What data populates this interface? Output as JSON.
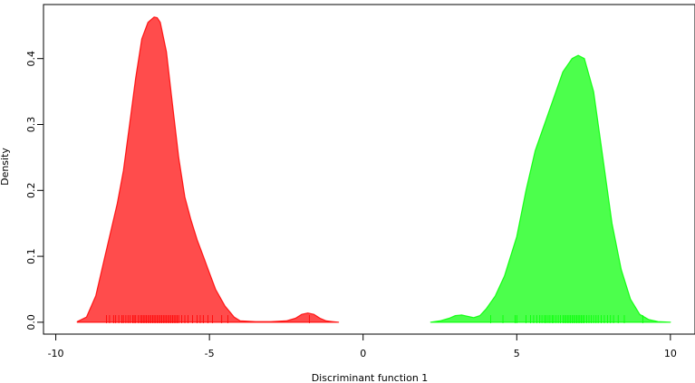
{
  "chart_data": {
    "type": "area",
    "title": "",
    "xlabel": "Discriminant function 1",
    "ylabel": "Density",
    "xlim": [
      -10.4,
      10.8
    ],
    "ylim": [
      -0.018,
      0.482
    ],
    "x_ticks": [
      -10,
      -5,
      0,
      5,
      10
    ],
    "x_tick_labels": [
      "-10",
      "-5",
      "0",
      "5",
      "10"
    ],
    "y_ticks": [
      0.0,
      0.1,
      0.2,
      0.3,
      0.4
    ],
    "y_tick_labels": [
      "0.0",
      "0.1",
      "0.2",
      "0.3",
      "0.4"
    ],
    "grid": false,
    "legend": "none",
    "series": [
      {
        "color": "#ff0000",
        "x": [
          -9.3,
          -9.0,
          -8.7,
          -8.4,
          -8.2,
          -8.0,
          -7.8,
          -7.6,
          -7.4,
          -7.2,
          -7.0,
          -6.8,
          -6.7,
          -6.6,
          -6.4,
          -6.2,
          -6.0,
          -5.8,
          -5.6,
          -5.4,
          -5.2,
          -5.0,
          -4.8,
          -4.5,
          -4.2,
          -4.0,
          -3.5,
          -3.0,
          -2.5,
          -2.2,
          -2.0,
          -1.8,
          -1.6,
          -1.4,
          -1.2,
          -1.0,
          -0.8
        ],
        "y": [
          0.001,
          0.008,
          0.04,
          0.1,
          0.14,
          0.18,
          0.23,
          0.3,
          0.37,
          0.43,
          0.455,
          0.463,
          0.462,
          0.455,
          0.41,
          0.33,
          0.25,
          0.19,
          0.155,
          0.125,
          0.1,
          0.075,
          0.05,
          0.025,
          0.008,
          0.002,
          0.001,
          0.001,
          0.002,
          0.006,
          0.012,
          0.014,
          0.012,
          0.006,
          0.002,
          0.001,
          0.0
        ],
        "rug": [
          -8.35,
          -8.25,
          -8.12,
          -8.05,
          -7.95,
          -7.85,
          -7.8,
          -7.72,
          -7.65,
          -7.58,
          -7.5,
          -7.45,
          -7.4,
          -7.32,
          -7.25,
          -7.2,
          -7.15,
          -7.1,
          -7.05,
          -7.0,
          -6.95,
          -6.9,
          -6.85,
          -6.8,
          -6.75,
          -6.7,
          -6.65,
          -6.6,
          -6.55,
          -6.5,
          -6.45,
          -6.4,
          -6.35,
          -6.3,
          -6.25,
          -6.2,
          -6.15,
          -6.1,
          -6.05,
          -6.0,
          -5.9,
          -5.8,
          -5.7,
          -5.55,
          -5.4,
          -5.3,
          -5.2,
          -5.05,
          -4.9,
          -4.6,
          -4.4,
          -1.75
        ]
      },
      {
        "color": "#00ff00",
        "x": [
          2.2,
          2.5,
          2.8,
          3.0,
          3.2,
          3.4,
          3.6,
          3.8,
          4.0,
          4.3,
          4.6,
          5.0,
          5.3,
          5.6,
          5.9,
          6.2,
          6.5,
          6.8,
          7.0,
          7.2,
          7.5,
          7.8,
          8.1,
          8.4,
          8.7,
          9.0,
          9.3,
          9.6,
          10.0
        ],
        "y": [
          0.0,
          0.002,
          0.006,
          0.01,
          0.011,
          0.009,
          0.007,
          0.01,
          0.02,
          0.04,
          0.07,
          0.13,
          0.2,
          0.26,
          0.3,
          0.34,
          0.38,
          0.4,
          0.405,
          0.4,
          0.35,
          0.25,
          0.15,
          0.08,
          0.035,
          0.012,
          0.004,
          0.001,
          0.0
        ],
        "rug": [
          4.15,
          4.55,
          4.95,
          5.0,
          5.3,
          5.45,
          5.55,
          5.65,
          5.75,
          5.82,
          5.9,
          5.95,
          6.02,
          6.08,
          6.15,
          6.2,
          6.28,
          6.35,
          6.42,
          6.5,
          6.55,
          6.6,
          6.65,
          6.7,
          6.75,
          6.8,
          6.85,
          6.9,
          6.95,
          7.0,
          7.05,
          7.1,
          7.15,
          7.2,
          7.28,
          7.35,
          7.42,
          7.5,
          7.58,
          7.65,
          7.75,
          7.85,
          7.95,
          8.05,
          8.15,
          8.3,
          8.5,
          9.1
        ]
      }
    ]
  }
}
